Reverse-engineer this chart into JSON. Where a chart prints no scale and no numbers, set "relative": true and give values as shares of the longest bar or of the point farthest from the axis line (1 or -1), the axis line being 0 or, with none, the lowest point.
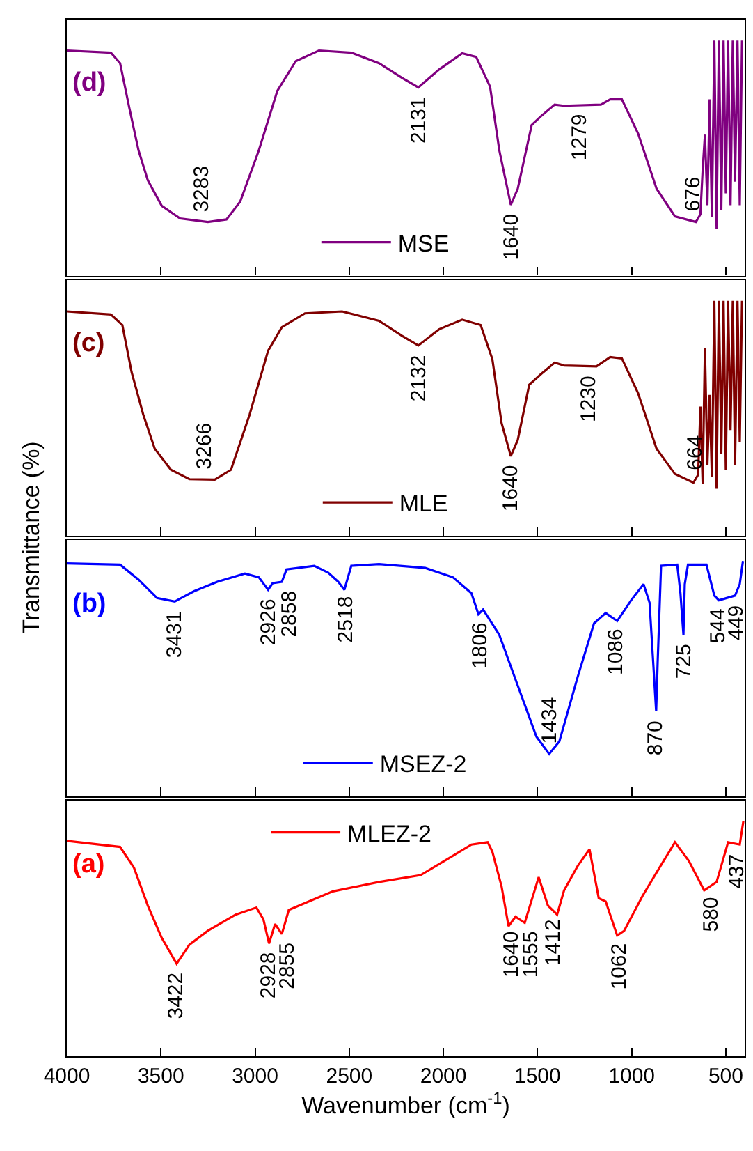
{
  "chart_data": [
    {
      "type": "line",
      "relative": true,
      "xlim": [
        4000,
        400
      ],
      "xticks": [
        4000,
        3500,
        3000,
        2500,
        2000,
        1500,
        1000,
        500
      ],
      "tick_labels": false,
      "legend": "bottom",
      "series": [
        {
          "name": "MSE",
          "color": "#800080",
          "x": [
            4000,
            3766,
            3717,
            3668,
            3619,
            3570,
            3496,
            3398,
            3251,
            3152,
            3079,
            2980,
            2882,
            2784,
            2661,
            2489,
            2342,
            2219,
            2133,
            2023,
            1900,
            1826,
            1752,
            1703,
            1642,
            1605,
            1531,
            1482,
            1409,
            1359,
            1163,
            1114,
            1052,
            966,
            868,
            770,
            659,
            635,
            623,
            611,
            598,
            586,
            574,
            561,
            549,
            537,
            524,
            512,
            500,
            488,
            475,
            463,
            451,
            438,
            426,
            414
          ],
          "values": [
            0.958,
            0.949,
            0.904,
            0.714,
            0.533,
            0.406,
            0.297,
            0.243,
            0.228,
            0.239,
            0.315,
            0.533,
            0.786,
            0.913,
            0.958,
            0.949,
            0.904,
            0.841,
            0.801,
            0.877,
            0.946,
            0.931,
            0.804,
            0.533,
            0.301,
            0.37,
            0.641,
            0.678,
            0.728,
            0.723,
            0.728,
            0.75,
            0.75,
            0.605,
            0.37,
            0.252,
            0.228,
            0.261,
            0.45,
            0.6,
            0.3,
            0.75,
            0.25,
            1.0,
            0.2,
            1.0,
            0.28,
            1.0,
            0.35,
            1.0,
            0.3,
            1.0,
            0.4,
            1.0,
            0.3,
            1.0
          ]
        }
      ],
      "annotations": [
        "(d)",
        {
          "text": "3283",
          "x": 3283,
          "y": 0.231
        },
        {
          "text": "2131",
          "x": 2131,
          "y": 0.801
        },
        {
          "text": "1640",
          "x": 1640,
          "y": 0.301
        },
        {
          "text": "1279",
          "x": 1279,
          "y": 0.725
        },
        {
          "text": "676",
          "x": 676,
          "y": 0.232
        }
      ]
    },
    {
      "type": "line",
      "relative": true,
      "xlim": [
        4000,
        400
      ],
      "xticks": [
        4000,
        3500,
        3000,
        2500,
        2000,
        1500,
        1000,
        500
      ],
      "tick_labels": false,
      "legend": "bottom",
      "ylabel": "Transmittance (%)",
      "series": [
        {
          "name": "MLE",
          "color": "#800000",
          "x": [
            4000,
            3766,
            3705,
            3656,
            3594,
            3533,
            3447,
            3349,
            3214,
            3128,
            3029,
            2931,
            2858,
            2735,
            2538,
            2342,
            2219,
            2133,
            2023,
            1900,
            1802,
            1740,
            1691,
            1642,
            1605,
            1544,
            1482,
            1409,
            1359,
            1187,
            1114,
            1052,
            966,
            868,
            770,
            672,
            647,
            635,
            623,
            611,
            598,
            586,
            574,
            561,
            549,
            537,
            524,
            512,
            500,
            488,
            475,
            463,
            451,
            438,
            426,
            414
          ],
          "values": [
            0.955,
            0.942,
            0.897,
            0.697,
            0.516,
            0.371,
            0.281,
            0.241,
            0.239,
            0.281,
            0.516,
            0.788,
            0.888,
            0.947,
            0.955,
            0.915,
            0.851,
            0.81,
            0.879,
            0.92,
            0.897,
            0.752,
            0.48,
            0.339,
            0.408,
            0.643,
            0.688,
            0.737,
            0.725,
            0.721,
            0.761,
            0.755,
            0.607,
            0.371,
            0.263,
            0.226,
            0.26,
            0.55,
            0.22,
            0.8,
            0.3,
            0.6,
            0.25,
            1.0,
            0.2,
            1.0,
            0.35,
            1.0,
            0.28,
            1.0,
            0.45,
            1.0,
            0.3,
            1.0,
            0.4,
            1.0
          ]
        }
      ],
      "annotations": [
        "(c)",
        {
          "text": "3266",
          "x": 3266,
          "y": 0.24
        },
        {
          "text": "2132",
          "x": 2132,
          "y": 0.81
        },
        {
          "text": "1640",
          "x": 1640,
          "y": 0.339
        },
        {
          "text": "1230",
          "x": 1230,
          "y": 0.722
        },
        {
          "text": "664",
          "x": 664,
          "y": 0.237
        }
      ]
    },
    {
      "type": "line",
      "relative": true,
      "xlim": [
        4000,
        400
      ],
      "xticks": [
        4000,
        3500,
        3000,
        2500,
        2000,
        1500,
        1000,
        500
      ],
      "tick_labels": false,
      "legend": "bottom",
      "series": [
        {
          "name": "MSEZ-2",
          "color": "#0000ff",
          "x": [
            4000,
            3717,
            3619,
            3521,
            3427,
            3324,
            3201,
            3054,
            2980,
            2931,
            2907,
            2858,
            2833,
            2686,
            2612,
            2558,
            2526,
            2489,
            2342,
            2096,
            1949,
            1851,
            1814,
            1789,
            1703,
            1605,
            1506,
            1438,
            1384,
            1286,
            1200,
            1138,
            1077,
            1003,
            937,
            905,
            870,
            862,
            844,
            758,
            741,
            725,
            718,
            701,
            603,
            561,
            537,
            451,
            426,
            409
          ],
          "values": [
            0.99,
            0.985,
            0.921,
            0.843,
            0.828,
            0.872,
            0.912,
            0.947,
            0.931,
            0.878,
            0.906,
            0.912,
            0.965,
            0.98,
            0.951,
            0.912,
            0.878,
            0.98,
            0.987,
            0.971,
            0.931,
            0.863,
            0.774,
            0.794,
            0.686,
            0.47,
            0.253,
            0.179,
            0.233,
            0.509,
            0.735,
            0.779,
            0.745,
            0.833,
            0.902,
            0.823,
            0.362,
            0.568,
            0.98,
            0.985,
            0.863,
            0.686,
            0.902,
            0.985,
            0.985,
            0.853,
            0.833,
            0.853,
            0.902,
            1.0
          ]
        }
      ],
      "annotations": [
        "(b)",
        {
          "text": "3431",
          "x": 3431,
          "y": 0.828
        },
        {
          "text": "2926",
          "x": 2926,
          "y": 0.878
        },
        {
          "text": "2858",
          "x": 2858,
          "y": 0.912
        },
        {
          "text": "2518",
          "x": 2518,
          "y": 0.89
        },
        {
          "text": "1806",
          "x": 1806,
          "y": 0.78
        },
        {
          "text": "1434",
          "x": 1434,
          "y": 0.179
        },
        {
          "text": "1086",
          "x": 1086,
          "y": 0.75
        },
        {
          "text": "870",
          "x": 870,
          "y": 0.362
        },
        {
          "text": "725",
          "x": 725,
          "y": 0.686
        },
        {
          "text": "544",
          "x": 544,
          "y": 0.84
        },
        {
          "text": "449",
          "x": 449,
          "y": 0.853
        }
      ]
    },
    {
      "type": "line",
      "relative": true,
      "xlim": [
        4000,
        400
      ],
      "xticks": [
        4000,
        3500,
        3000,
        2500,
        2000,
        1500,
        1000,
        500
      ],
      "tick_labels": "x",
      "legend": "top",
      "xlabel": "Wavenumber (cm$^{-1}$)",
      "series": [
        {
          "name": "MLEZ-2",
          "color": "#ff0000",
          "x": [
            4000,
            3717,
            3643,
            3570,
            3496,
            3417,
            3349,
            3251,
            3103,
            2993,
            2956,
            2926,
            2894,
            2858,
            2821,
            2587,
            2342,
            2121,
            1973,
            1851,
            1765,
            1740,
            1691,
            1654,
            1617,
            1568,
            1494,
            1445,
            1396,
            1359,
            1286,
            1224,
            1175,
            1138,
            1077,
            1040,
            942,
            868,
            770,
            696,
            615,
            549,
            488,
            426,
            407
          ],
          "values": [
            0.917,
            0.891,
            0.802,
            0.642,
            0.504,
            0.394,
            0.475,
            0.534,
            0.603,
            0.633,
            0.583,
            0.48,
            0.563,
            0.52,
            0.623,
            0.702,
            0.742,
            0.771,
            0.842,
            0.901,
            0.911,
            0.871,
            0.723,
            0.554,
            0.594,
            0.568,
            0.762,
            0.642,
            0.603,
            0.706,
            0.811,
            0.881,
            0.673,
            0.659,
            0.514,
            0.534,
            0.683,
            0.782,
            0.911,
            0.831,
            0.706,
            0.742,
            0.911,
            0.901,
            1.0
          ]
        }
      ],
      "annotations": [
        "(a)",
        {
          "text": "3422",
          "x": 3422,
          "y": 0.394
        },
        {
          "text": "2928",
          "x": 2928,
          "y": 0.48
        },
        {
          "text": "2855",
          "x": 2855,
          "y": 0.52
        },
        {
          "text": "1640",
          "x": 1640,
          "y": 0.57
        },
        {
          "text": "1555",
          "x": 1555,
          "y": 0.57
        },
        {
          "text": "1412",
          "x": 1412,
          "y": 0.62
        },
        {
          "text": "1062",
          "x": 1062,
          "y": 0.52
        },
        {
          "text": "580",
          "x": 580,
          "y": 0.72
        },
        {
          "text": "437",
          "x": 437,
          "y": 0.905
        }
      ]
    }
  ]
}
